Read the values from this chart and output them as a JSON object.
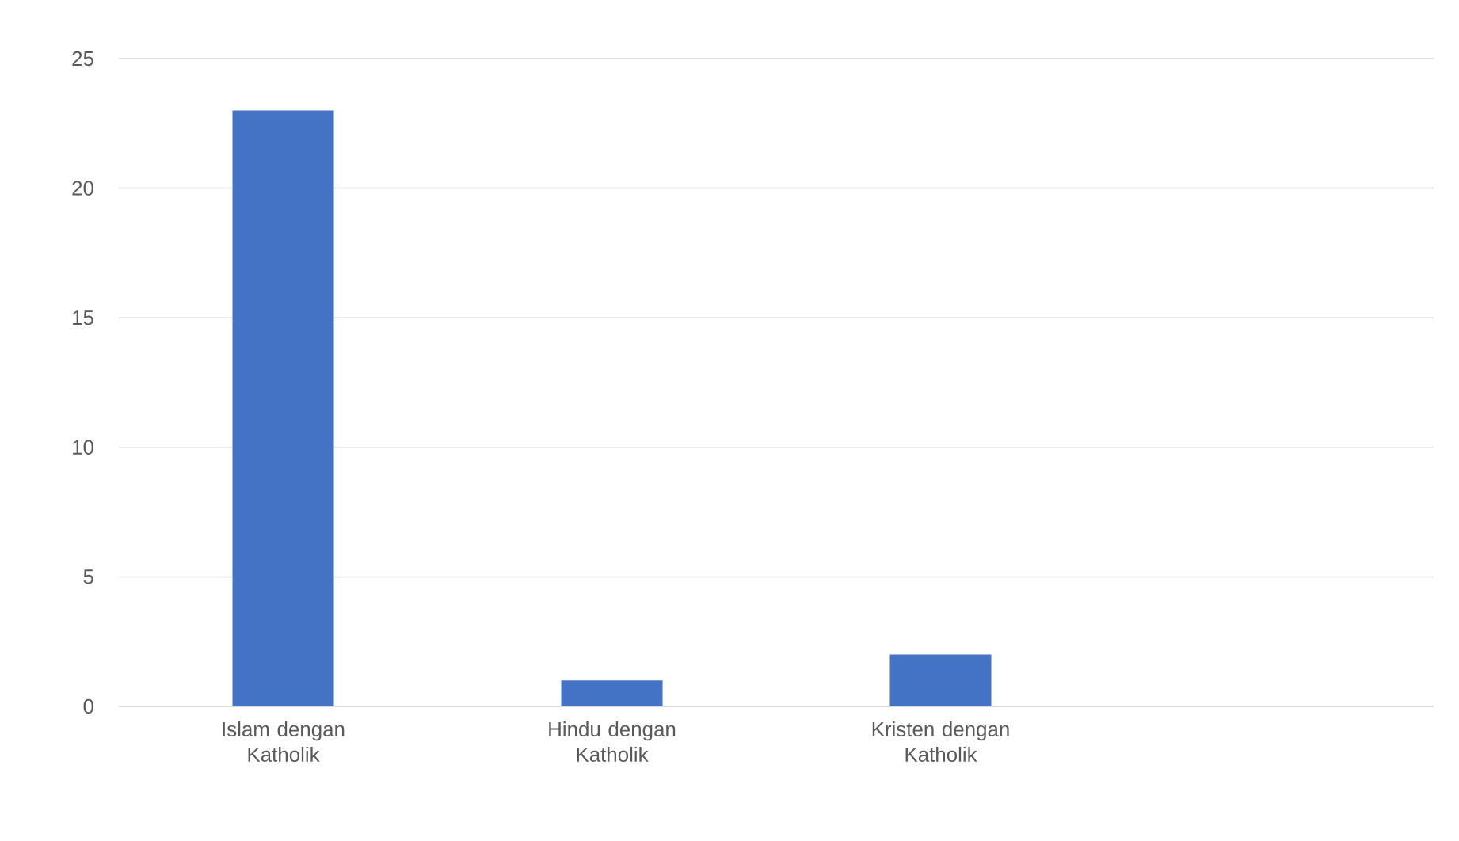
{
  "chart_data": {
    "type": "bar",
    "categories": [
      "Islam dengan Katholik",
      "Hindu dengan Katholik",
      "Kristen dengan Katholik",
      null
    ],
    "values": [
      23,
      1,
      2,
      null
    ],
    "color": "#4472c4",
    "ylim": [
      0,
      25
    ],
    "yticks": [
      0,
      5,
      10,
      15,
      20,
      25
    ],
    "grid": "y"
  }
}
